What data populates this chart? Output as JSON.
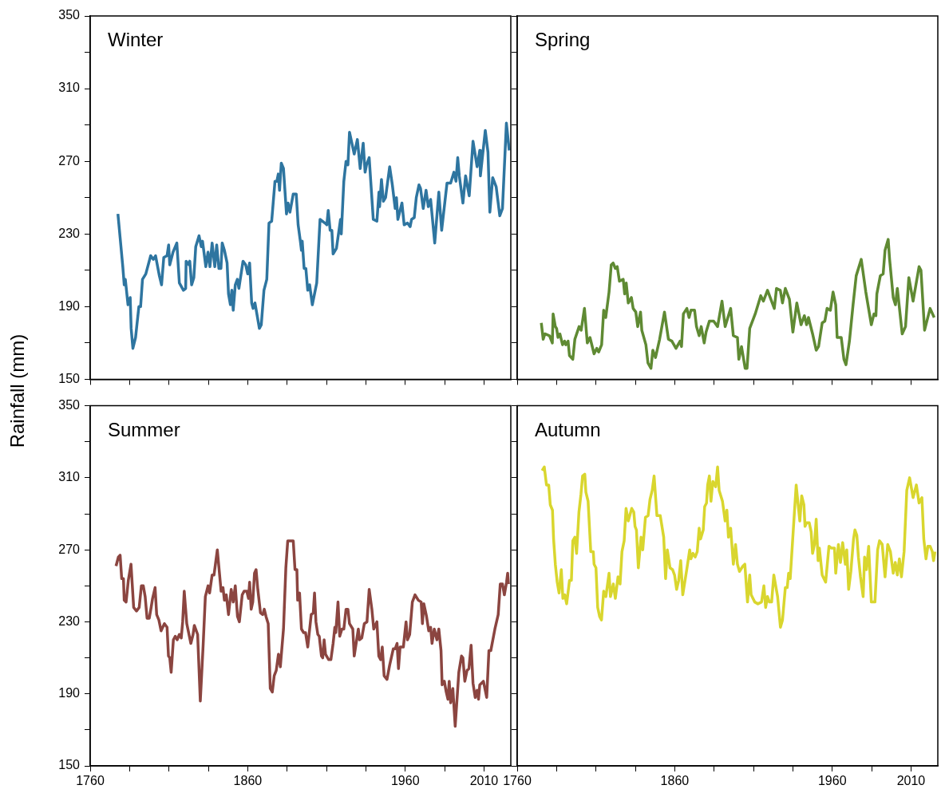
{
  "chart_data": [
    {
      "type": "line",
      "title": "Winter",
      "ylabel": "Rainfall (mm)",
      "xlim": [
        1760,
        2027
      ],
      "ylim": [
        150,
        350
      ],
      "tick_labels": "y",
      "xticks": [
        1760,
        {
          "value": 1785,
          "label": null
        },
        {
          "value": 1810,
          "label": null
        },
        {
          "value": 1835,
          "label": null
        },
        1860,
        {
          "value": 1885,
          "label": null
        },
        {
          "value": 1910,
          "label": null
        },
        {
          "value": 1935,
          "label": null
        },
        1960,
        {
          "value": 1985,
          "label": null
        },
        2010
      ],
      "yticks": [
        150,
        {
          "value": 170,
          "label": null
        },
        190,
        {
          "value": 210,
          "label": null
        },
        230,
        {
          "value": 250,
          "label": null
        },
        270,
        {
          "value": 290,
          "label": null
        },
        310,
        {
          "value": 330,
          "label": null
        },
        350
      ],
      "x": [
        1777.6,
        1779,
        1780.7,
        1781.6,
        1782.3,
        1784,
        1785.4,
        1786,
        1787.1,
        1788.8,
        1790.9,
        1792,
        1793.2,
        1795.3,
        1798.4,
        1800.1,
        1801.5,
        1803.9,
        1805.3,
        1806.7,
        1808.8,
        1809.8,
        1810.5,
        1812.6,
        1815,
        1816.6,
        1819.2,
        1820.6,
        1820.9,
        1822.7,
        1823.2,
        1824.4,
        1825.8,
        1827,
        1829.1,
        1830.5,
        1831.3,
        1833.4,
        1834.8,
        1836,
        1837.4,
        1839.1,
        1840.3,
        1841.7,
        1843,
        1843.8,
        1845.2,
        1846.9,
        1847.8,
        1849,
        1849.9,
        1850.8,
        1852.1,
        1853.4,
        1854.4,
        1857,
        1858.7,
        1860,
        1861.2,
        1862.5,
        1863.4,
        1864.6,
        1867.4,
        1868.6,
        1870.3,
        1872.1,
        1873.5,
        1875.2,
        1877.3,
        1878.5,
        1879.4,
        1880.2,
        1881.3,
        1882.7,
        1884.6,
        1885.6,
        1886.8,
        1888.9,
        1890.8,
        1892,
        1893.4,
        1894.1,
        1894.6,
        1895.8,
        1896.9,
        1898.1,
        1899.3,
        1901,
        1903.8,
        1905.9,
        1909,
        1910.2,
        1911.1,
        1912.3,
        1913.4,
        1914.2,
        1916.3,
        1918.9,
        1919.4,
        1921,
        1922.4,
        1923.6,
        1924.6,
        1927.6,
        1929.6,
        1931.4,
        1933.3,
        1934.5,
        1935.4,
        1937.1,
        1939.7,
        1942,
        1943.3,
        1943.7,
        1944.9,
        1946.1,
        1947.5,
        1950.1,
        1951.8,
        1953.6,
        1954.4,
        1955.3,
        1957.9,
        1959.3,
        1961.4,
        1963.1,
        1964,
        1965.7,
        1967,
        1968.7,
        1969.7,
        1971.4,
        1973.2,
        1974.6,
        1976.1,
        1978.7,
        1981.3,
        1983.1,
        1986.5,
        1988.8,
        1990.9,
        1992.2,
        1993.3,
        1994.3,
        1996.6,
        1998.3,
        2000.6,
        2003,
        2005.6,
        2007.3,
        2007.7,
        2010.8,
        2012.5,
        2013.7,
        2015.5,
        2017.7,
        2020,
        2021.7,
        2024.2,
        2026
      ],
      "series": [
        {
          "color": "#2e75a0",
          "values": [
            241,
            228,
            212,
            202,
            205,
            191,
            195,
            178,
            167,
            173,
            190,
            190,
            205,
            208,
            218,
            216,
            218,
            207,
            202,
            217,
            218,
            224,
            213,
            220,
            225,
            203,
            199,
            200,
            215,
            213,
            215,
            202,
            206,
            223,
            229,
            223,
            226,
            212,
            220,
            212,
            225,
            212,
            224,
            211,
            211,
            225,
            221,
            214,
            197,
            191,
            199,
            188,
            202,
            205,
            200,
            215,
            213,
            208,
            214,
            192,
            189,
            192,
            178,
            180,
            199,
            205,
            236,
            237,
            259,
            259,
            263,
            254,
            269,
            266,
            241,
            247,
            242,
            252,
            252,
            235,
            226,
            221,
            226,
            211,
            211,
            199,
            202,
            191,
            203,
            238,
            236,
            235,
            243,
            232,
            232,
            219,
            222,
            238,
            230,
            259,
            270,
            268,
            286,
            274,
            282,
            266,
            280,
            264,
            268,
            272,
            238,
            237,
            253,
            245,
            260,
            248,
            250,
            267,
            257,
            244,
            250,
            238,
            247,
            235,
            236,
            234,
            238,
            239,
            250,
            257,
            255,
            244,
            254,
            245,
            249,
            225,
            253,
            232,
            258,
            258,
            264,
            259,
            272,
            262,
            247,
            262,
            251,
            281,
            267,
            276,
            262,
            287,
            275,
            242,
            261,
            256,
            240,
            244,
            291,
            276
          ]
        }
      ]
    },
    {
      "type": "line",
      "title": "Spring",
      "xlim": [
        1760,
        2027
      ],
      "ylim": [
        150,
        350
      ],
      "tick_labels": false,
      "xticks": [
        1760,
        {
          "value": 1785,
          "label": null
        },
        {
          "value": 1810,
          "label": null
        },
        {
          "value": 1835,
          "label": null
        },
        1860,
        {
          "value": 1885,
          "label": null
        },
        {
          "value": 1910,
          "label": null
        },
        {
          "value": 1935,
          "label": null
        },
        1960,
        {
          "value": 1985,
          "label": null
        },
        2010
      ],
      "yticks": [
        150,
        {
          "value": 170,
          "label": null
        },
        190,
        {
          "value": 210,
          "label": null
        },
        230,
        {
          "value": 250,
          "label": null
        },
        270,
        {
          "value": 290,
          "label": null
        },
        310,
        {
          "value": 330,
          "label": null
        },
        350
      ],
      "x": [
        1775.3,
        1776.5,
        1777.6,
        1780.5,
        1782.3,
        1782.8,
        1784.2,
        1785,
        1785.9,
        1787.1,
        1788.8,
        1790.1,
        1790.9,
        1792.3,
        1793.2,
        1795.3,
        1796.6,
        1799.3,
        1800.6,
        1802.7,
        1804.5,
        1806.2,
        1808.8,
        1810.5,
        1811.7,
        1813.6,
        1814.9,
        1816.2,
        1818.3,
        1819.7,
        1820.9,
        1822.3,
        1823.5,
        1824.9,
        1827.3,
        1828.2,
        1829.2,
        1830.5,
        1832.5,
        1833.6,
        1835.3,
        1836.5,
        1838.3,
        1839.1,
        1841.7,
        1843,
        1844.9,
        1846.1,
        1847.8,
        1850.4,
        1853.5,
        1856,
        1858.2,
        1860.8,
        1863.4,
        1864.3,
        1865.5,
        1867.7,
        1869.1,
        1870.3,
        1872.6,
        1873.8,
        1875.5,
        1876.8,
        1878.7,
        1879.9,
        1882,
        1884.7,
        1887.2,
        1890,
        1892,
        1895.5,
        1897.2,
        1899.8,
        1900.7,
        1902.4,
        1904.7,
        1905.9,
        1907.6,
        1911.1,
        1914.6,
        1916.3,
        1918.9,
        1920.6,
        1923.2,
        1924.6,
        1927,
        1928.4,
        1930.2,
        1932.8,
        1935,
        1937.5,
        1940.2,
        1942.3,
        1943.7,
        1944.9,
        1947.5,
        1949.8,
        1951.3,
        1953.6,
        1955.3,
        1956.7,
        1958.8,
        1960.5,
        1962.2,
        1963.1,
        1965.7,
        1967.4,
        1968.7,
        1970.9,
        1973.2,
        1975.2,
        1978.4,
        1981.3,
        1984.8,
        1986.5,
        1987.7,
        1988.3,
        1990.5,
        1992.3,
        1993.5,
        1995.5,
        1996.4,
        1998.7,
        2000.1,
        2001.3,
        2004.4,
        2006.5,
        2008.6,
        2011.3,
        2015.1,
        2016.3,
        2018.6,
        2022.1,
        2024.7
      ],
      "series": [
        {
          "color": "#5f8a33",
          "values": [
            181,
            172,
            175,
            174,
            170,
            186,
            179,
            178,
            173,
            175,
            169,
            171,
            169,
            171,
            163,
            161,
            172,
            179,
            177,
            189,
            170,
            173,
            164,
            167,
            165,
            169,
            188,
            184,
            198,
            213,
            214,
            211,
            212,
            204,
            205,
            197,
            203,
            192,
            195,
            189,
            187,
            179,
            187,
            177,
            169,
            159,
            156,
            166,
            162,
            172,
            187,
            172,
            171,
            167,
            171,
            168,
            186,
            189,
            184,
            188,
            188,
            179,
            174,
            179,
            170,
            176,
            182,
            182,
            179,
            193,
            179,
            189,
            174,
            173,
            161,
            168,
            156,
            156,
            178,
            186,
            196,
            193,
            199,
            195,
            189,
            200,
            199,
            192,
            200,
            194,
            176,
            192,
            180,
            185,
            180,
            184,
            175,
            166,
            168,
            181,
            182,
            189,
            188,
            198,
            191,
            173,
            173,
            161,
            158,
            171,
            191,
            207,
            216,
            198,
            180,
            186,
            185,
            197,
            207,
            208,
            221,
            227,
            216,
            195,
            191,
            200,
            175,
            179,
            206,
            193,
            212,
            210,
            177,
            189,
            184
          ]
        }
      ]
    },
    {
      "type": "line",
      "title": "Summer",
      "xlim": [
        1760,
        2027
      ],
      "ylim": [
        150,
        350
      ],
      "xticks": [
        1760,
        {
          "value": 1785,
          "label": null
        },
        {
          "value": 1810,
          "label": null
        },
        {
          "value": 1835,
          "label": null
        },
        1860,
        {
          "value": 1885,
          "label": null
        },
        {
          "value": 1910,
          "label": null
        },
        {
          "value": 1935,
          "label": null
        },
        1960,
        {
          "value": 1985,
          "label": null
        },
        2010
      ],
      "yticks": [
        150,
        {
          "value": 170,
          "label": null
        },
        190,
        {
          "value": 210,
          "label": null
        },
        230,
        {
          "value": 250,
          "label": null
        },
        270,
        {
          "value": 290,
          "label": null
        },
        310,
        {
          "value": 330,
          "label": null
        },
        350
      ],
      "x": [
        1776.4,
        1777.9,
        1779,
        1780,
        1781.1,
        1781.6,
        1782.8,
        1784.2,
        1785.9,
        1787.6,
        1789.4,
        1791.1,
        1792.5,
        1793.7,
        1794.9,
        1796.1,
        1797.5,
        1798.7,
        1799.6,
        1801.2,
        1802.2,
        1803.6,
        1805,
        1807.1,
        1808.8,
        1809.7,
        1810.5,
        1811.4,
        1812.8,
        1814,
        1815.2,
        1816.6,
        1817.8,
        1818.7,
        1819.7,
        1821.3,
        1823.9,
        1825.3,
        1826.1,
        1828.2,
        1829.9,
        1831.7,
        1833.1,
        1834.8,
        1835.8,
        1837.4,
        1838.6,
        1840.7,
        1843.1,
        1844.3,
        1845.2,
        1846.4,
        1847.8,
        1849.5,
        1850.8,
        1852.1,
        1853.5,
        1854.7,
        1856.5,
        1857.7,
        1859.4,
        1860.5,
        1861.2,
        1862.2,
        1863.2,
        1864.3,
        1865.3,
        1866.4,
        1868.1,
        1869.5,
        1870.5,
        1871.6,
        1873,
        1874.3,
        1875.6,
        1876.8,
        1878.1,
        1879.5,
        1880.7,
        1882.7,
        1884.2,
        1885.4,
        1887.3,
        1888.9,
        1890,
        1891.2,
        1891.7,
        1892.9,
        1894.1,
        1895.5,
        1896.7,
        1898.1,
        1900.3,
        1901.6,
        1902.4,
        1903.3,
        1904.5,
        1905.4,
        1906.8,
        1907.6,
        1908.5,
        1909.4,
        1911.4,
        1912.8,
        1914.2,
        1915.3,
        1915.9,
        1917.3,
        1918.4,
        1919.8,
        1921,
        1922.4,
        1923.6,
        1924.6,
        1926.7,
        1927.6,
        1930.2,
        1931,
        1932.4,
        1934,
        1935.7,
        1937.1,
        1938.8,
        1940,
        1942,
        1943.2,
        1944.4,
        1945.4,
        1946.6,
        1948.4,
        1950.1,
        1952.4,
        1953.6,
        1954.8,
        1955.7,
        1956.7,
        1958.8,
        1960.5,
        1961.4,
        1962.8,
        1964.5,
        1966.2,
        1968.3,
        1970.1,
        1970.9,
        1971.8,
        1973.5,
        1974.9,
        1976.1,
        1977,
        1978.4,
        1980.1,
        1981.3,
        1982.7,
        1983.4,
        1984.8,
        1986,
        1987.1,
        1987.9,
        1988.8,
        1990.2,
        1991.7,
        1994,
        1995.7,
        1996.6,
        1997.8,
        1999.2,
        2000.4,
        2001.8,
        2003,
        2004.4,
        2005.6,
        2006.5,
        2007.3,
        2009.6,
        2011.7,
        2013.1,
        2014.3,
        2016.9,
        2019,
        2020.3,
        2021.7,
        2022.9,
        2024.3,
        2025,
        2025.5
      ],
      "series": [
        {
          "color": "#8b4540",
          "values": [
            261,
            266,
            267,
            254,
            254,
            242,
            241,
            253,
            262,
            238,
            236,
            238,
            250,
            250,
            244,
            232,
            232,
            238,
            243,
            249,
            234,
            231,
            225,
            229,
            227,
            211,
            210,
            202,
            220,
            222,
            220,
            223,
            221,
            230,
            247,
            229,
            218,
            223,
            228,
            223,
            186,
            217,
            244,
            250,
            246,
            256,
            256,
            270,
            247,
            249,
            242,
            245,
            234,
            248,
            241,
            250,
            233,
            230,
            245,
            247,
            247,
            243,
            252,
            237,
            241,
            257,
            259,
            248,
            235,
            234,
            237,
            233,
            229,
            193,
            191,
            200,
            203,
            212,
            205,
            226,
            260,
            275,
            275,
            275,
            259,
            259,
            242,
            246,
            226,
            224,
            224,
            216,
            234,
            235,
            246,
            230,
            223,
            222,
            211,
            210,
            220,
            212,
            209,
            209,
            218,
            227,
            224,
            241,
            222,
            226,
            226,
            237,
            237,
            229,
            226,
            211,
            226,
            220,
            221,
            229,
            230,
            248,
            237,
            226,
            230,
            211,
            209,
            216,
            200,
            198,
            206,
            215,
            215,
            218,
            204,
            216,
            216,
            230,
            220,
            223,
            241,
            245,
            242,
            241,
            229,
            240,
            233,
            225,
            227,
            218,
            226,
            220,
            226,
            214,
            195,
            197,
            191,
            187,
            197,
            185,
            193,
            172,
            202,
            211,
            210,
            197,
            203,
            204,
            217,
            196,
            188,
            192,
            187,
            195,
            197,
            188,
            214,
            214,
            226,
            234,
            251,
            251,
            245,
            252,
            257,
            251
          ]
        }
      ]
    },
    {
      "type": "line",
      "title": "Autumn",
      "xlim": [
        1760,
        2027
      ],
      "ylim": [
        150,
        350
      ],
      "tick_labels": "x",
      "xticks": [
        1760,
        {
          "value": 1785,
          "label": null
        },
        {
          "value": 1810,
          "label": null
        },
        {
          "value": 1835,
          "label": null
        },
        1860,
        {
          "value": 1885,
          "label": null
        },
        {
          "value": 1910,
          "label": null
        },
        {
          "value": 1935,
          "label": null
        },
        1960,
        {
          "value": 1985,
          "label": null
        },
        2010
      ],
      "yticks": [
        150,
        {
          "value": 170,
          "label": null
        },
        190,
        {
          "value": 210,
          "label": null
        },
        230,
        {
          "value": 250,
          "label": null
        },
        270,
        {
          "value": 290,
          "label": null
        },
        310,
        {
          "value": 330,
          "label": null
        },
        350
      ],
      "x": [
        1775.8,
        1777.2,
        1778.6,
        1780,
        1781,
        1782.4,
        1783.1,
        1784.2,
        1785.4,
        1786.6,
        1788,
        1789,
        1790.2,
        1791.4,
        1793.2,
        1794.4,
        1795.3,
        1796.6,
        1797.7,
        1799.2,
        1800.5,
        1801.5,
        1802.9,
        1803.6,
        1805,
        1806.7,
        1808.3,
        1808.8,
        1810,
        1811.1,
        1812.3,
        1813.5,
        1814.9,
        1816.3,
        1818.3,
        1819.2,
        1821,
        1822.3,
        1824,
        1825.3,
        1826.5,
        1827.9,
        1829.1,
        1830.5,
        1832.7,
        1834,
        1834.8,
        1835.7,
        1836.9,
        1838.6,
        1839.7,
        1841.4,
        1843.1,
        1844.3,
        1845.7,
        1846.9,
        1848.7,
        1850.8,
        1853,
        1854.2,
        1855.3,
        1857,
        1858.6,
        1859.9,
        1861.2,
        1862.5,
        1863.8,
        1865.1,
        1867.8,
        1869.5,
        1870.3,
        1871.6,
        1873,
        1874.3,
        1875.5,
        1876.4,
        1878.1,
        1879,
        1880.2,
        1880.9,
        1882,
        1883,
        1884.2,
        1886,
        1887.2,
        1888.2,
        1890.3,
        1892,
        1893.1,
        1894.1,
        1895.5,
        1897.2,
        1898.6,
        1899.8,
        1901.1,
        1903.3,
        1904.5,
        1906.2,
        1907.6,
        1908.5,
        1910.8,
        1912.8,
        1915.1,
        1916.6,
        1917.7,
        1918.9,
        1920.1,
        1921.5,
        1922.9,
        1925.3,
        1927.1,
        1928.4,
        1930.2,
        1931.4,
        1932.3,
        1933.3,
        1935.4,
        1937.1,
        1938,
        1939.4,
        1940.6,
        1942,
        1942.7,
        1943.7,
        1945.4,
        1946.6,
        1947.5,
        1948.7,
        1949.8,
        1951,
        1951.8,
        1953.6,
        1955.8,
        1957.9,
        1959.3,
        1961.4,
        1962.2,
        1963.9,
        1965.2,
        1966.6,
        1968.3,
        1969.2,
        1970.4,
        1971.8,
        1973.5,
        1974.4,
        1975.6,
        1976.6,
        1977.9,
        1979.6,
        1980.5,
        1981.7,
        1983.1,
        1984.8,
        1987.1,
        1988.8,
        1990,
        1991.7,
        1993.5,
        1995.2,
        1996.9,
        1998.7,
        2000,
        2001.3,
        2002.6,
        2003.9,
        2005.6,
        2007.3,
        2009.1,
        2011.3,
        2013.4,
        2015.1,
        2016.9,
        2018.1,
        2019.5,
        2020.7,
        2022.1,
        2023.5,
        2024.3,
        2025.2
      ],
      "series": [
        {
          "color": "#d9d62e",
          "values": [
            314,
            316,
            306,
            306,
            295,
            292,
            276,
            262,
            252,
            246,
            259,
            243,
            245,
            240,
            253,
            253,
            275,
            277,
            268,
            291,
            301,
            311,
            312,
            302,
            297,
            269,
            269,
            262,
            260,
            238,
            233,
            231,
            247,
            244,
            257,
            244,
            251,
            243,
            255,
            251,
            269,
            275,
            293,
            286,
            293,
            291,
            283,
            281,
            260,
            277,
            270,
            288,
            289,
            298,
            303,
            311,
            289,
            289,
            277,
            254,
            270,
            260,
            259,
            256,
            248,
            253,
            264,
            245,
            260,
            270,
            265,
            268,
            266,
            269,
            282,
            276,
            281,
            294,
            296,
            306,
            311,
            297,
            308,
            305,
            316,
            303,
            297,
            286,
            292,
            277,
            282,
            262,
            273,
            262,
            258,
            261,
            262,
            241,
            256,
            245,
            241,
            240,
            241,
            250,
            238,
            244,
            241,
            241,
            256,
            244,
            227,
            231,
            249,
            249,
            257,
            254,
            283,
            306,
            298,
            286,
            300,
            295,
            283,
            285,
            285,
            280,
            268,
            273,
            287,
            264,
            271,
            256,
            252,
            272,
            271,
            271,
            257,
            273,
            263,
            274,
            262,
            270,
            248,
            258,
            276,
            281,
            278,
            266,
            255,
            244,
            266,
            259,
            272,
            241,
            241,
            270,
            275,
            273,
            255,
            273,
            269,
            257,
            263,
            256,
            265,
            255,
            269,
            303,
            310,
            299,
            306,
            296,
            299,
            276,
            265,
            272,
            272,
            269,
            264,
            269
          ]
        }
      ]
    }
  ]
}
